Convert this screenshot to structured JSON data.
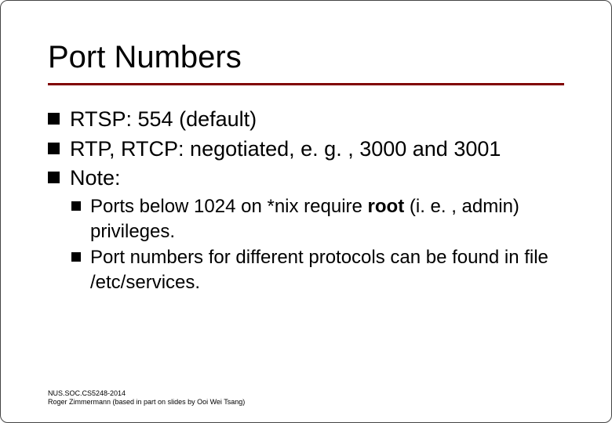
{
  "title": "Port Numbers",
  "title_fontsize": 40,
  "rule_color": "#800000",
  "bullet_color": "#000000",
  "text_color": "#000000",
  "background_color": "#ffffff",
  "bullet_fontsize": 27,
  "subbullet_fontsize": 24,
  "items": [
    {
      "text": "RTSP: 554 (default)"
    },
    {
      "text": "RTP, RTCP: negotiated, e. g. , 3000 and 3001"
    },
    {
      "text": "Note:",
      "children": [
        {
          "pre": "Ports below 1024 on *nix require ",
          "bold": "root",
          "post": " (i. e. , admin) privileges."
        },
        {
          "pre": "Port numbers for different protocols can be found in file /etc/services.",
          "bold": "",
          "post": ""
        }
      ]
    }
  ],
  "footer": {
    "line1": "NUS.SOC.CS5248-2014",
    "line2": "Roger Zimmermann (based in part on slides by Ooi Wei Tsang)"
  }
}
